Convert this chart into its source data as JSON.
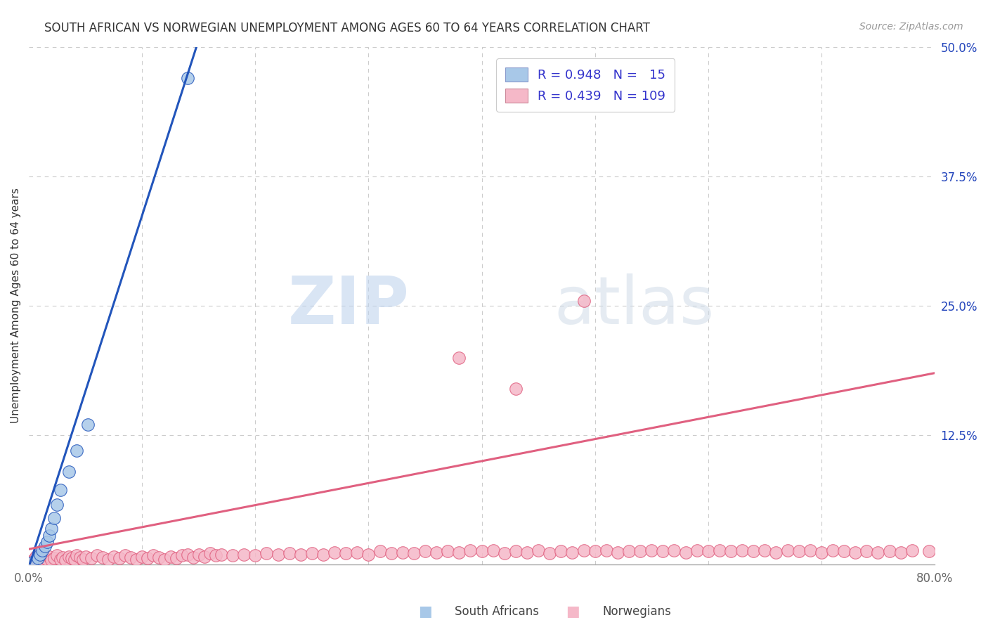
{
  "title": "SOUTH AFRICAN VS NORWEGIAN UNEMPLOYMENT AMONG AGES 60 TO 64 YEARS CORRELATION CHART",
  "source": "Source: ZipAtlas.com",
  "ylabel": "Unemployment Among Ages 60 to 64 years",
  "xlim": [
    0.0,
    0.8
  ],
  "ylim": [
    0.0,
    0.5
  ],
  "yticks_right": [
    0.0,
    0.125,
    0.25,
    0.375,
    0.5
  ],
  "ytick_right_labels": [
    "",
    "12.5%",
    "25.0%",
    "37.5%",
    "50.0%"
  ],
  "background_color": "#ffffff",
  "grid_color": "#cccccc",
  "title_fontsize": 12,
  "sa_color": "#a8c8e8",
  "sa_line_color": "#2255bb",
  "no_color": "#f5b8c8",
  "no_line_color": "#e06080",
  "legend_text_color": "#3333cc",
  "watermark_zip": "ZIP",
  "watermark_atlas": "atlas",
  "sa_points_x": [
    0.003,
    0.008,
    0.01,
    0.012,
    0.014,
    0.016,
    0.018,
    0.02,
    0.022,
    0.025,
    0.028,
    0.035,
    0.042,
    0.052,
    0.14
  ],
  "sa_points_y": [
    0.002,
    0.006,
    0.01,
    0.014,
    0.018,
    0.022,
    0.028,
    0.035,
    0.045,
    0.058,
    0.072,
    0.09,
    0.11,
    0.135,
    0.47
  ],
  "sa_line_x0": 0.0,
  "sa_line_y0": -0.002,
  "sa_line_x1": 0.148,
  "sa_line_y1": 0.5,
  "no_line_x0": 0.0,
  "no_line_y0": 0.015,
  "no_line_x1": 0.8,
  "no_line_y1": 0.185,
  "no_points_x": [
    0.002,
    0.004,
    0.006,
    0.008,
    0.01,
    0.012,
    0.014,
    0.016,
    0.018,
    0.02,
    0.022,
    0.025,
    0.028,
    0.03,
    0.032,
    0.035,
    0.038,
    0.04,
    0.042,
    0.045,
    0.048,
    0.05,
    0.055,
    0.06,
    0.065,
    0.07,
    0.075,
    0.08,
    0.085,
    0.09,
    0.095,
    0.1,
    0.105,
    0.11,
    0.115,
    0.12,
    0.125,
    0.13,
    0.135,
    0.14,
    0.145,
    0.15,
    0.155,
    0.16,
    0.165,
    0.17,
    0.18,
    0.19,
    0.2,
    0.21,
    0.22,
    0.23,
    0.24,
    0.25,
    0.26,
    0.27,
    0.28,
    0.29,
    0.3,
    0.31,
    0.32,
    0.33,
    0.34,
    0.35,
    0.36,
    0.37,
    0.38,
    0.39,
    0.4,
    0.41,
    0.42,
    0.43,
    0.44,
    0.45,
    0.46,
    0.47,
    0.48,
    0.49,
    0.5,
    0.51,
    0.52,
    0.53,
    0.54,
    0.55,
    0.56,
    0.57,
    0.58,
    0.59,
    0.6,
    0.61,
    0.62,
    0.63,
    0.64,
    0.65,
    0.66,
    0.67,
    0.68,
    0.69,
    0.7,
    0.71,
    0.72,
    0.73,
    0.74,
    0.75,
    0.76,
    0.77,
    0.78,
    0.795,
    0.38,
    0.43,
    0.49
  ],
  "no_points_y": [
    0.003,
    0.005,
    0.008,
    0.004,
    0.007,
    0.003,
    0.006,
    0.005,
    0.008,
    0.004,
    0.006,
    0.009,
    0.005,
    0.007,
    0.004,
    0.008,
    0.006,
    0.005,
    0.009,
    0.007,
    0.005,
    0.008,
    0.006,
    0.009,
    0.007,
    0.005,
    0.008,
    0.006,
    0.009,
    0.007,
    0.005,
    0.008,
    0.006,
    0.009,
    0.007,
    0.005,
    0.008,
    0.006,
    0.009,
    0.01,
    0.007,
    0.01,
    0.008,
    0.011,
    0.009,
    0.01,
    0.009,
    0.01,
    0.009,
    0.011,
    0.01,
    0.011,
    0.01,
    0.011,
    0.01,
    0.012,
    0.011,
    0.012,
    0.01,
    0.013,
    0.011,
    0.012,
    0.011,
    0.013,
    0.012,
    0.013,
    0.012,
    0.014,
    0.013,
    0.014,
    0.011,
    0.013,
    0.012,
    0.014,
    0.011,
    0.013,
    0.012,
    0.014,
    0.013,
    0.014,
    0.012,
    0.013,
    0.013,
    0.014,
    0.013,
    0.014,
    0.012,
    0.014,
    0.013,
    0.014,
    0.013,
    0.014,
    0.013,
    0.014,
    0.012,
    0.014,
    0.013,
    0.014,
    0.012,
    0.014,
    0.013,
    0.012,
    0.013,
    0.012,
    0.013,
    0.012,
    0.014,
    0.013,
    0.2,
    0.17,
    0.255
  ]
}
